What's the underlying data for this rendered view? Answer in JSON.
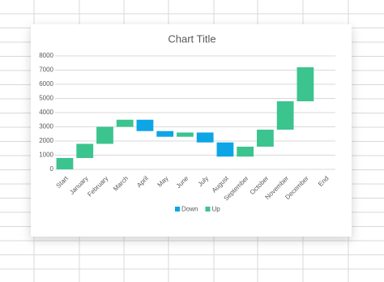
{
  "chart_data": {
    "type": "waterfall",
    "title": "Chart Title",
    "categories": [
      "Start",
      "January",
      "February",
      "March",
      "April",
      "May",
      "June",
      "July",
      "August",
      "September",
      "October",
      "November",
      "December",
      "End"
    ],
    "values": [
      800,
      1000,
      1200,
      500,
      -800,
      -400,
      300,
      -700,
      -1000,
      700,
      1200,
      2000,
      2400,
      null
    ],
    "legend_entries": [
      {
        "name": "Down",
        "color": "#0ea5e6"
      },
      {
        "name": "Up",
        "color": "#3cc48f"
      }
    ],
    "ylim": [
      0,
      8000
    ],
    "yticks": [
      0,
      1000,
      2000,
      3000,
      4000,
      5000,
      6000,
      7000,
      8000
    ],
    "grid": true
  }
}
